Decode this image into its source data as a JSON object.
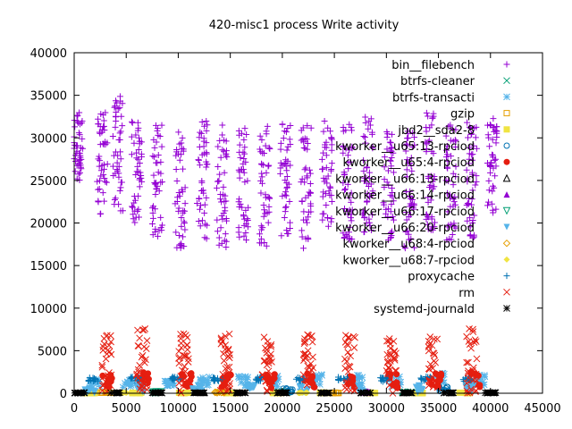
{
  "chart_data": {
    "type": "scatter",
    "title": "420-misc1 process Write activity",
    "xlabel": "",
    "ylabel": "",
    "xlim": [
      0,
      45000
    ],
    "ylim": [
      0,
      40000
    ],
    "x_ticks": [
      "0",
      "5000",
      "10000",
      "15000",
      "20000",
      "25000",
      "30000",
      "35000",
      "40000",
      "45000"
    ],
    "y_ticks": [
      "0",
      "5000",
      "10000",
      "15000",
      "20000",
      "25000",
      "30000",
      "35000",
      "40000"
    ],
    "grid": false,
    "legend_position": "top-right",
    "x_range": [
      0,
      40500
    ],
    "series": [
      {
        "name": "bin__filebench",
        "color": "#9400d3",
        "marker": "plus",
        "clusters": [
          [
            350,
            29000,
            4000
          ],
          [
            2700,
            27000,
            6000
          ],
          [
            4200,
            28000,
            7000
          ],
          [
            6000,
            26000,
            6000
          ],
          [
            8000,
            25000,
            7000
          ],
          [
            10200,
            24000,
            7000
          ],
          [
            12300,
            25000,
            7000
          ],
          [
            14200,
            24500,
            7500
          ],
          [
            16300,
            25000,
            7000
          ],
          [
            18300,
            24500,
            7500
          ],
          [
            20300,
            25000,
            7000
          ],
          [
            22300,
            24500,
            7500
          ],
          [
            24300,
            26000,
            6500
          ],
          [
            26300,
            25000,
            7000
          ],
          [
            28200,
            25500,
            7000
          ],
          [
            30200,
            25000,
            7000
          ],
          [
            32200,
            24500,
            7500
          ],
          [
            34200,
            26000,
            7000
          ],
          [
            36200,
            25000,
            7000
          ],
          [
            38200,
            25000,
            7000
          ],
          [
            40200,
            27000,
            6000
          ]
        ]
      },
      {
        "name": "btrfs-cleaner",
        "color": "#009e73",
        "marker": "x",
        "clusters": [
          [
            20000,
            150,
            80
          ],
          [
            32000,
            120,
            60
          ]
        ]
      },
      {
        "name": "btrfs-transacti",
        "color": "#56b4e9",
        "marker": "star",
        "clusters": [
          [
            2000,
            1200,
            500
          ],
          [
            5200,
            1100,
            550
          ],
          [
            9200,
            1300,
            500
          ],
          [
            12500,
            1500,
            600
          ],
          [
            16200,
            1500,
            650
          ],
          [
            19500,
            1400,
            600
          ],
          [
            23500,
            1500,
            700
          ],
          [
            27200,
            1500,
            650
          ],
          [
            31000,
            1400,
            650
          ],
          [
            35200,
            1700,
            650
          ],
          [
            39000,
            1500,
            700
          ]
        ]
      },
      {
        "name": "gzip",
        "color": "#e69f00",
        "marker": "square",
        "clusters": [
          [
            3000,
            60,
            40
          ],
          [
            25000,
            50,
            30
          ]
        ]
      },
      {
        "name": "jbd2__sda2-8",
        "color": "#f0e442",
        "marker": "filled-square",
        "clusters": [
          [
            1500,
            40,
            30
          ],
          [
            6000,
            40,
            30
          ],
          [
            10500,
            40,
            30
          ],
          [
            15000,
            40,
            30
          ],
          [
            19500,
            40,
            30
          ],
          [
            24000,
            40,
            30
          ],
          [
            28500,
            40,
            30
          ],
          [
            33000,
            40,
            30
          ],
          [
            37500,
            40,
            30
          ]
        ]
      },
      {
        "name": "kworker__u65:13-rpciod",
        "color": "#0072b2",
        "marker": "circle",
        "clusters": [
          [
            20500,
            400,
            300
          ],
          [
            35500,
            500,
            300
          ]
        ]
      },
      {
        "name": "kworker__u65:4-rpciod",
        "color": "#e51e10",
        "marker": "filled-circle",
        "clusters": [
          [
            3200,
            1500,
            900
          ],
          [
            6700,
            1600,
            900
          ],
          [
            10800,
            1500,
            900
          ],
          [
            14600,
            1400,
            900
          ],
          [
            18800,
            1500,
            900
          ],
          [
            22600,
            1500,
            900
          ],
          [
            26800,
            1500,
            900
          ],
          [
            30600,
            1500,
            900
          ],
          [
            34800,
            1500,
            900
          ],
          [
            38500,
            1600,
            900
          ]
        ]
      },
      {
        "name": "kworker__u66:13-rpciod",
        "color": "#000000",
        "marker": "triangle",
        "clusters": [
          [
            12000,
            150,
            80
          ]
        ]
      },
      {
        "name": "kworker__u66:14-rpciod",
        "color": "#9400d3",
        "marker": "filled-triangle",
        "clusters": [
          [
            28000,
            150,
            80
          ]
        ]
      },
      {
        "name": "kworker__u66:17-rpciod",
        "color": "#009e73",
        "marker": "inv-triangle",
        "clusters": [
          [
            8000,
            120,
            80
          ]
        ]
      },
      {
        "name": "kworker__u66:20-rpciod",
        "color": "#56b4e9",
        "marker": "filled-inv-triangle",
        "clusters": [
          [
            1500,
            500,
            450
          ],
          [
            6500,
            600,
            450
          ],
          [
            11800,
            500,
            450
          ],
          [
            17000,
            600,
            450
          ],
          [
            22000,
            500,
            450
          ],
          [
            27500,
            600,
            450
          ],
          [
            33000,
            500,
            450
          ],
          [
            38000,
            600,
            450
          ]
        ]
      },
      {
        "name": "kworker__u68:4-rpciod",
        "color": "#e69f00",
        "marker": "diamond",
        "clusters": [
          [
            14000,
            80,
            40
          ]
        ]
      },
      {
        "name": "kworker__u68:7-rpciod",
        "color": "#f0e442",
        "marker": "filled-diamond",
        "clusters": [
          [
            5000,
            60,
            40
          ],
          [
            22000,
            60,
            40
          ]
        ]
      },
      {
        "name": "proxycache",
        "color": "#0072b2",
        "marker": "plus",
        "clusters": [
          [
            1800,
            1600,
            250
          ],
          [
            5800,
            1700,
            250
          ],
          [
            9800,
            1700,
            250
          ],
          [
            13800,
            1600,
            250
          ],
          [
            17800,
            1700,
            250
          ],
          [
            21800,
            1600,
            250
          ],
          [
            25800,
            1700,
            250
          ],
          [
            29800,
            1600,
            250
          ],
          [
            33800,
            1700,
            250
          ],
          [
            37800,
            1600,
            250
          ]
        ]
      },
      {
        "name": "rm",
        "color": "#e51e10",
        "marker": "x",
        "clusters": [
          [
            3100,
            3500,
            3500
          ],
          [
            6500,
            3800,
            3800
          ],
          [
            10500,
            3500,
            3500
          ],
          [
            14500,
            3500,
            3500
          ],
          [
            18500,
            3500,
            3500
          ],
          [
            22500,
            3500,
            3500
          ],
          [
            26500,
            3500,
            3500
          ],
          [
            30500,
            3600,
            3600
          ],
          [
            34500,
            3500,
            3500
          ],
          [
            38200,
            3800,
            3800
          ]
        ]
      },
      {
        "name": "systemd-journald",
        "color": "#000000",
        "marker": "asterisk",
        "clusters": [
          [
            500,
            50,
            30
          ],
          [
            4000,
            50,
            30
          ],
          [
            8000,
            50,
            30
          ],
          [
            12000,
            50,
            30
          ],
          [
            16000,
            50,
            30
          ],
          [
            20000,
            50,
            30
          ],
          [
            24000,
            50,
            30
          ],
          [
            28000,
            50,
            30
          ],
          [
            32000,
            50,
            30
          ],
          [
            36000,
            50,
            30
          ],
          [
            40000,
            50,
            30
          ]
        ]
      }
    ]
  }
}
